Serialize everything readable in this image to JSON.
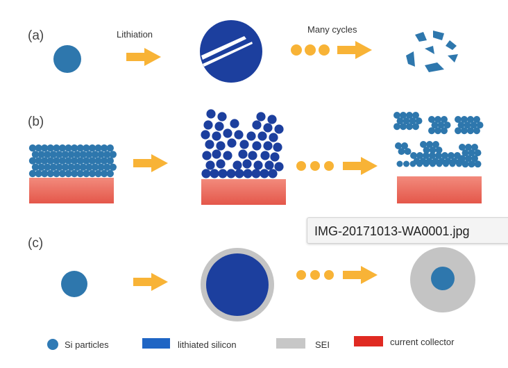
{
  "panels": [
    {
      "label": "(a)",
      "step_labels": [
        "Lithiation",
        "Many cycles"
      ]
    },
    {
      "label": "(b)"
    },
    {
      "label": "(c)"
    }
  ],
  "legend": [
    {
      "label": "Si particles",
      "icon": "si-particle-icon",
      "color": "#2f7ab5"
    },
    {
      "label": "lithiated silicon",
      "icon": "lithiated-silicon-icon",
      "color": "#1f65c4"
    },
    {
      "label": "SEI",
      "icon": "sei-icon",
      "color": "#c7c7c7"
    },
    {
      "label": "current collector",
      "icon": "current-collector-icon",
      "color": "#e02a22"
    }
  ],
  "colors": {
    "si": "#2e77ad",
    "lithiated": "#1c3f9e",
    "sei": "#c4c4c4",
    "collector_top": "#f07a6c",
    "collector_bottom": "#e55a4d",
    "arrow": "#f8b336"
  },
  "tooltip": {
    "text": "IMG-20171013-WA0001.jpg"
  }
}
